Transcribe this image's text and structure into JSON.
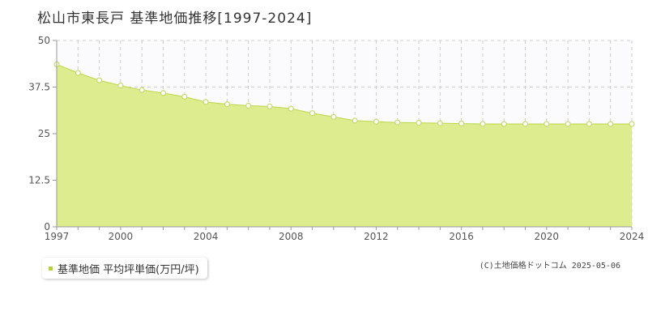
{
  "page": {
    "title": "松山市東長戸 基準地価推移[1997-2024]",
    "copyright": "(C)土地価格ドットコム 2025-05-06"
  },
  "legend": {
    "label": "基準地価 平均坪単価(万円/坪)"
  },
  "colors": {
    "area_fill": "#dcec8f",
    "area_stroke": "#bcd84a",
    "point_fill": "#ffffff",
    "point_stroke": "#c4dc6a",
    "plot_bg": "#fbfafd",
    "grid": "#cccccc",
    "axis": "#999999",
    "legend_marker": "#b5d334"
  },
  "chart_data": {
    "type": "area",
    "title": "松山市東長戸 基準地価推移[1997-2024]",
    "xlabel": "",
    "ylabel": "",
    "xlim": [
      1997,
      2024
    ],
    "ylim": [
      0,
      50
    ],
    "yticks": [
      0,
      12.5,
      25,
      37.5,
      50
    ],
    "ytick_labels": [
      "0",
      "12.5",
      "25",
      "37.5",
      "50"
    ],
    "xticks": [
      1997,
      2000,
      2004,
      2008,
      2012,
      2016,
      2020,
      2024
    ],
    "xtick_labels": [
      "1997",
      "2000",
      "2004",
      "2008",
      "2012",
      "2016",
      "2020",
      "2024"
    ],
    "grid": true,
    "legend_position": "bottom-left",
    "series": [
      {
        "name": "基準地価 平均坪単価(万円/坪)",
        "x": [
          1997,
          1998,
          1999,
          2000,
          2001,
          2002,
          2003,
          2004,
          2005,
          2006,
          2007,
          2008,
          2009,
          2010,
          2011,
          2012,
          2013,
          2014,
          2015,
          2016,
          2017,
          2018,
          2019,
          2020,
          2021,
          2022,
          2023,
          2024
        ],
        "values": [
          43.6,
          41.3,
          39.3,
          37.9,
          36.7,
          35.9,
          34.9,
          33.5,
          32.9,
          32.5,
          32.3,
          31.7,
          30.5,
          29.5,
          28.5,
          28.2,
          28.0,
          27.9,
          27.8,
          27.7,
          27.6,
          27.6,
          27.6,
          27.6,
          27.6,
          27.6,
          27.6,
          27.6
        ]
      }
    ]
  }
}
